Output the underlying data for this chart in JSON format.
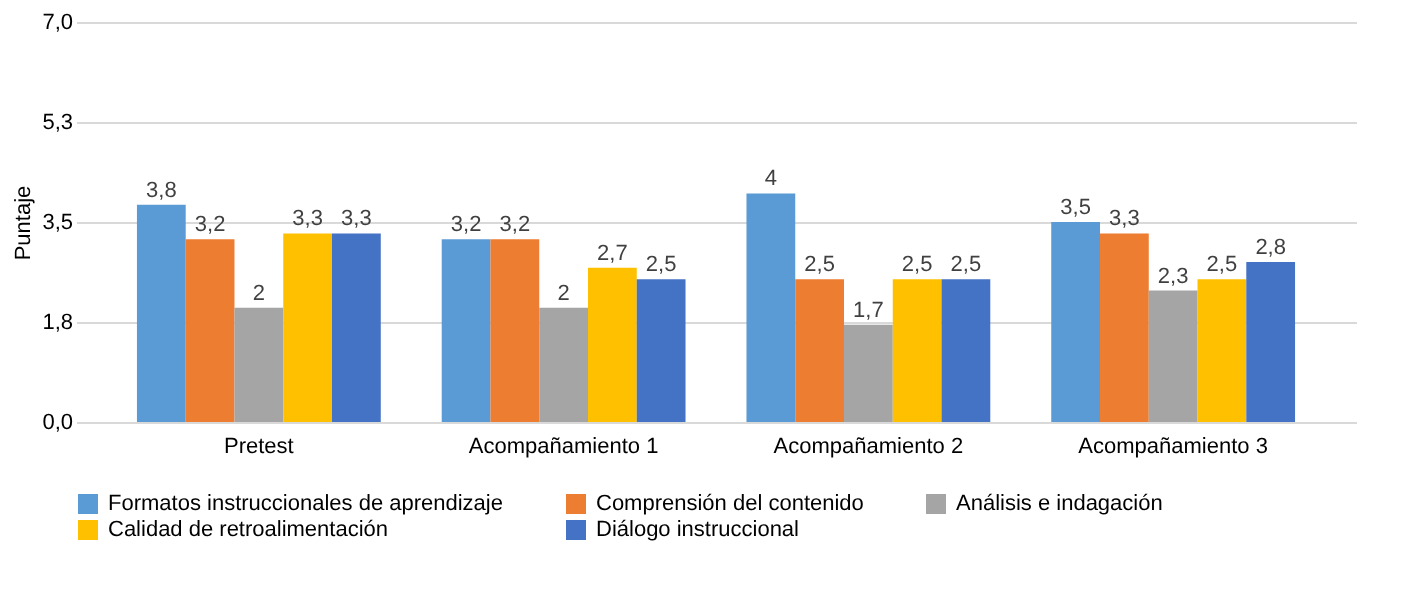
{
  "chart_data": {
    "type": "bar",
    "ylabel": "Puntaje",
    "categories": [
      "Pretest",
      "Acompañamiento 1",
      "Acompañamiento 2",
      "Acompañamiento 3"
    ],
    "series": [
      {
        "name": "Formatos instruccionales de aprendizaje",
        "color": "#5b9bd5",
        "values": [
          3.8,
          3.2,
          4,
          3.5
        ],
        "value_labels": [
          "3,8",
          "3,2",
          "4",
          "3,5"
        ]
      },
      {
        "name": "Comprensión del contenido",
        "color": "#ed7d31",
        "values": [
          3.2,
          3.2,
          2.5,
          3.3
        ],
        "value_labels": [
          "3,2",
          "3,2",
          "2,5",
          "3,3"
        ]
      },
      {
        "name": "Análisis e indagación",
        "color": "#a5a5a5",
        "values": [
          2,
          2,
          1.7,
          2.3
        ],
        "value_labels": [
          "2",
          "2",
          "1,7",
          "2,3"
        ]
      },
      {
        "name": "Calidad de retroalimentación",
        "color": "#ffc000",
        "values": [
          3.3,
          2.7,
          2.5,
          2.5
        ],
        "value_labels": [
          "3,3",
          "2,7",
          "2,5",
          "2,5"
        ]
      },
      {
        "name": "Diálogo instruccional",
        "color": "#4472c4",
        "values": [
          3.3,
          2.5,
          2.5,
          2.8
        ],
        "value_labels": [
          "3,3",
          "2,5",
          "2,5",
          "2,8"
        ]
      }
    ],
    "ylim": [
      0,
      7
    ],
    "yticks": [
      {
        "value": 0,
        "label": "0,0"
      },
      {
        "value": 1.75,
        "label": "1,8"
      },
      {
        "value": 3.5,
        "label": "3,5"
      },
      {
        "value": 5.25,
        "label": "5,3"
      },
      {
        "value": 7,
        "label": "7,0"
      }
    ],
    "grid": "y",
    "legend": "bottom"
  }
}
